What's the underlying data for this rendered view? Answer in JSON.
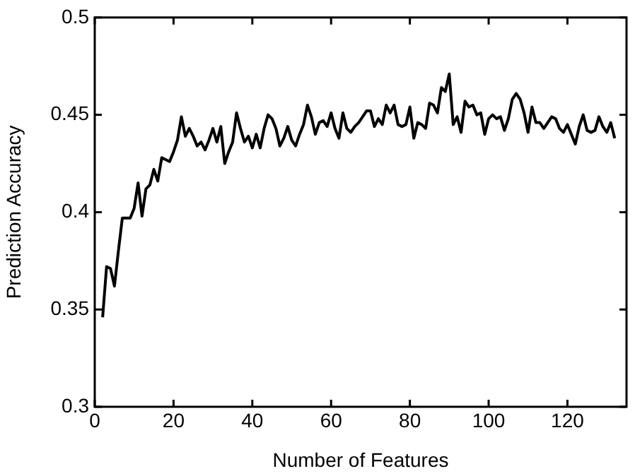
{
  "chart_data": {
    "type": "line",
    "xlabel": "Number of Features",
    "ylabel": "Prediction Accuracy",
    "x": [
      2,
      3,
      4,
      5,
      6,
      7,
      8,
      9,
      10,
      11,
      12,
      13,
      14,
      15,
      16,
      17,
      18,
      19,
      20,
      21,
      22,
      23,
      24,
      25,
      26,
      27,
      28,
      29,
      30,
      31,
      32,
      33,
      34,
      35,
      36,
      37,
      38,
      39,
      40,
      41,
      42,
      43,
      44,
      45,
      46,
      47,
      48,
      49,
      50,
      51,
      52,
      53,
      54,
      55,
      56,
      57,
      58,
      59,
      60,
      61,
      62,
      63,
      64,
      65,
      66,
      67,
      68,
      69,
      70,
      71,
      72,
      73,
      74,
      75,
      76,
      77,
      78,
      79,
      80,
      81,
      82,
      83,
      84,
      85,
      86,
      87,
      88,
      89,
      90,
      91,
      92,
      93,
      94,
      95,
      96,
      97,
      98,
      99,
      100,
      101,
      102,
      103,
      104,
      105,
      106,
      107,
      108,
      109,
      110,
      111,
      112,
      113,
      114,
      115,
      116,
      117,
      118,
      119,
      120,
      121,
      122,
      123,
      124,
      125,
      126,
      127,
      128,
      129,
      130,
      131,
      132
    ],
    "series": [
      {
        "color": "#000000",
        "values": [
          0.346,
          0.372,
          0.371,
          0.362,
          0.38,
          0.397,
          0.397,
          0.397,
          0.402,
          0.415,
          0.398,
          0.412,
          0.414,
          0.422,
          0.416,
          0.428,
          0.427,
          0.426,
          0.431,
          0.437,
          0.449,
          0.439,
          0.443,
          0.439,
          0.434,
          0.436,
          0.432,
          0.437,
          0.443,
          0.436,
          0.444,
          0.425,
          0.431,
          0.436,
          0.451,
          0.443,
          0.436,
          0.439,
          0.433,
          0.44,
          0.433,
          0.443,
          0.45,
          0.448,
          0.443,
          0.434,
          0.438,
          0.444,
          0.437,
          0.434,
          0.44,
          0.445,
          0.455,
          0.449,
          0.44,
          0.446,
          0.447,
          0.444,
          0.451,
          0.443,
          0.438,
          0.451,
          0.443,
          0.441,
          0.444,
          0.446,
          0.449,
          0.452,
          0.452,
          0.444,
          0.448,
          0.445,
          0.455,
          0.451,
          0.455,
          0.445,
          0.444,
          0.445,
          0.454,
          0.438,
          0.446,
          0.445,
          0.443,
          0.456,
          0.455,
          0.451,
          0.464,
          0.462,
          0.471,
          0.445,
          0.449,
          0.441,
          0.457,
          0.454,
          0.455,
          0.45,
          0.451,
          0.44,
          0.448,
          0.45,
          0.448,
          0.449,
          0.442,
          0.448,
          0.458,
          0.461,
          0.458,
          0.451,
          0.441,
          0.454,
          0.446,
          0.446,
          0.443,
          0.446,
          0.449,
          0.448,
          0.443,
          0.441,
          0.445,
          0.44,
          0.435,
          0.444,
          0.45,
          0.442,
          0.441,
          0.442,
          0.449,
          0.444,
          0.441,
          0.446,
          0.438
        ]
      }
    ],
    "xlim": [
      0,
      135
    ],
    "xticks": [
      0,
      20,
      40,
      60,
      80,
      100,
      120
    ],
    "ylim": [
      0.3,
      0.5
    ],
    "yticks": [
      0.3,
      0.35,
      0.4,
      0.45,
      0.5
    ],
    "grid": false,
    "legend": false,
    "marker": "none",
    "line_style": "solid"
  }
}
